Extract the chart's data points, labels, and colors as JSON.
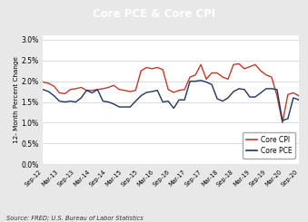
{
  "title": "Core PCE & Core CPI",
  "title_bg_color": "#1e3461",
  "title_text_color": "#ffffff",
  "ylabel": "12- Month Percent Change",
  "source_text": "Source: FRED; U.S. Bureau of Labor Statistics",
  "ylim": [
    0.0,
    0.031
  ],
  "yticks": [
    0.0,
    0.005,
    0.01,
    0.015,
    0.02,
    0.025,
    0.03
  ],
  "ytick_labels": [
    "0.0%",
    "0.5%",
    "1.0%",
    "1.5%",
    "2.0%",
    "2.5%",
    "3.0%"
  ],
  "xtick_labels": [
    "Sep-12",
    "Mar-13",
    "Sep-13",
    "Mar-14",
    "Sep-14",
    "Mar-15",
    "Sep-15",
    "Mar-16",
    "Sep-16",
    "Mar-17",
    "Sep-17",
    "Mar-18",
    "Sep-18",
    "Mar-19",
    "Sep-19",
    "Mar-20",
    "Sep-20"
  ],
  "cpi_color": "#c0392b",
  "pce_color": "#1e3461",
  "cpi_data": [
    1.98,
    1.95,
    1.88,
    1.72,
    1.7,
    1.8,
    1.82,
    1.85,
    1.78,
    1.78,
    1.8,
    1.82,
    1.85,
    1.9,
    1.8,
    1.78,
    1.75,
    1.78,
    2.25,
    2.33,
    2.3,
    2.33,
    2.28,
    1.8,
    1.73,
    1.78,
    1.8,
    2.1,
    2.15,
    2.4,
    2.05,
    2.2,
    2.2,
    2.1,
    2.05,
    2.4,
    2.42,
    2.3,
    2.35,
    2.4,
    2.25,
    2.15,
    2.1,
    1.65,
    1.0,
    1.68,
    1.72,
    1.65
  ],
  "pce_data": [
    1.8,
    1.75,
    1.65,
    1.52,
    1.5,
    1.52,
    1.5,
    1.6,
    1.78,
    1.72,
    1.8,
    1.52,
    1.5,
    1.45,
    1.38,
    1.38,
    1.38,
    1.52,
    1.65,
    1.73,
    1.75,
    1.78,
    1.5,
    1.52,
    1.35,
    1.55,
    1.55,
    2.0,
    2.0,
    2.02,
    1.98,
    1.92,
    1.58,
    1.52,
    1.6,
    1.75,
    1.82,
    1.8,
    1.62,
    1.62,
    1.72,
    1.82,
    1.82,
    1.8,
    1.05,
    1.1,
    1.6,
    1.55
  ],
  "legend_cpi": "Core CPI",
  "legend_pce": "Core PCE",
  "figure_bg_color": "#e8e8e8",
  "plot_bg_color": "#ffffff",
  "grid_color": "#cccccc"
}
